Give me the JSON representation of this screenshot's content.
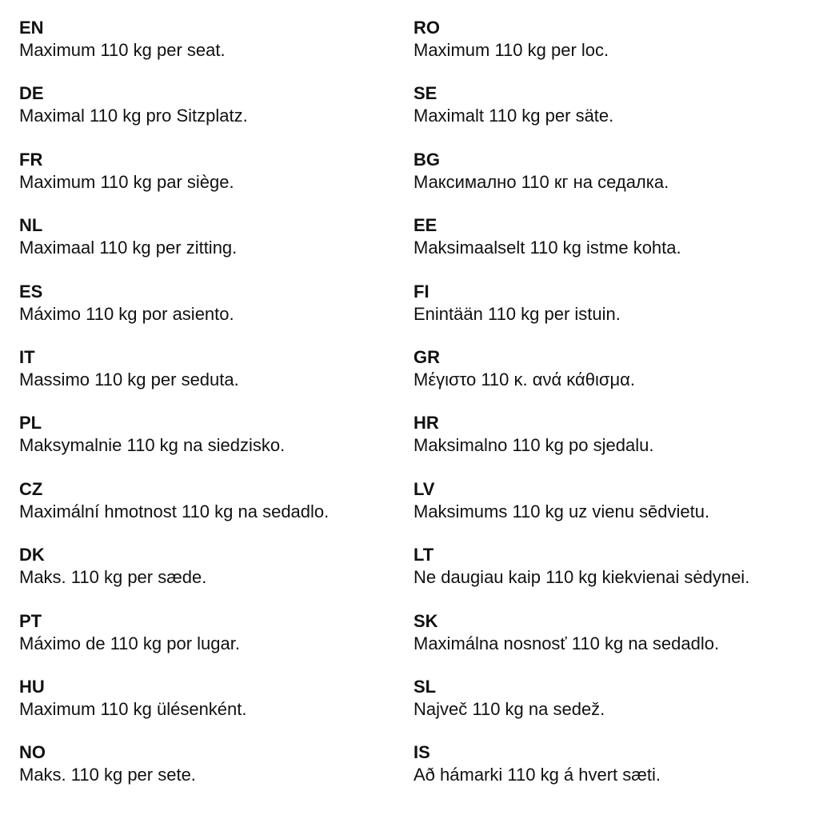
{
  "left": [
    {
      "code": "EN",
      "text": "Maximum 110 kg per seat."
    },
    {
      "code": "DE",
      "text": "Maximal 110 kg pro Sitzplatz."
    },
    {
      "code": "FR",
      "text": "Maximum 110 kg par siège."
    },
    {
      "code": "NL",
      "text": "Maximaal 110 kg per zitting."
    },
    {
      "code": "ES",
      "text": "Máximo 110 kg por asiento."
    },
    {
      "code": "IT",
      "text": "Massimo 110 kg per seduta."
    },
    {
      "code": "PL",
      "text": "Maksymalnie 110 kg na siedzisko."
    },
    {
      "code": "CZ",
      "text": "Maximální hmotnost 110 kg na sedadlo."
    },
    {
      "code": "DK",
      "text": "Maks. 110 kg per sæde."
    },
    {
      "code": "PT",
      "text": "Máximo de 110 kg por lugar."
    },
    {
      "code": "HU",
      "text": "Maximum 110 kg ülésenként."
    },
    {
      "code": "NO",
      "text": "Maks. 110 kg per sete."
    }
  ],
  "right": [
    {
      "code": "RO",
      "text": "Maximum 110 kg per loc."
    },
    {
      "code": "SE",
      "text": "Maximalt 110 kg per säte."
    },
    {
      "code": "BG",
      "text": "Максимално 110 кг на седалка."
    },
    {
      "code": "EE",
      "text": "Maksimaalselt 110 kg istme kohta."
    },
    {
      "code": "FI",
      "text": "Enintään 110 kg per istuin."
    },
    {
      "code": "GR",
      "text": "Μέγιστο 110 κ. ανά κάθισμα."
    },
    {
      "code": "HR",
      "text": "Maksimalno 110 kg po sjedalu."
    },
    {
      "code": "LV",
      "text": "Maksimums 110 kg uz vienu sēdvietu."
    },
    {
      "code": "LT",
      "text": "Ne daugiau kaip 110 kg kiekvienai sėdynei."
    },
    {
      "code": "SK",
      "text": "Maximálna nosnosť 110 kg na sedadlo."
    },
    {
      "code": "SL",
      "text": "Največ 110 kg na sedež."
    },
    {
      "code": "IS",
      "text": "Að hámarki 110 kg á hvert sæti."
    }
  ]
}
